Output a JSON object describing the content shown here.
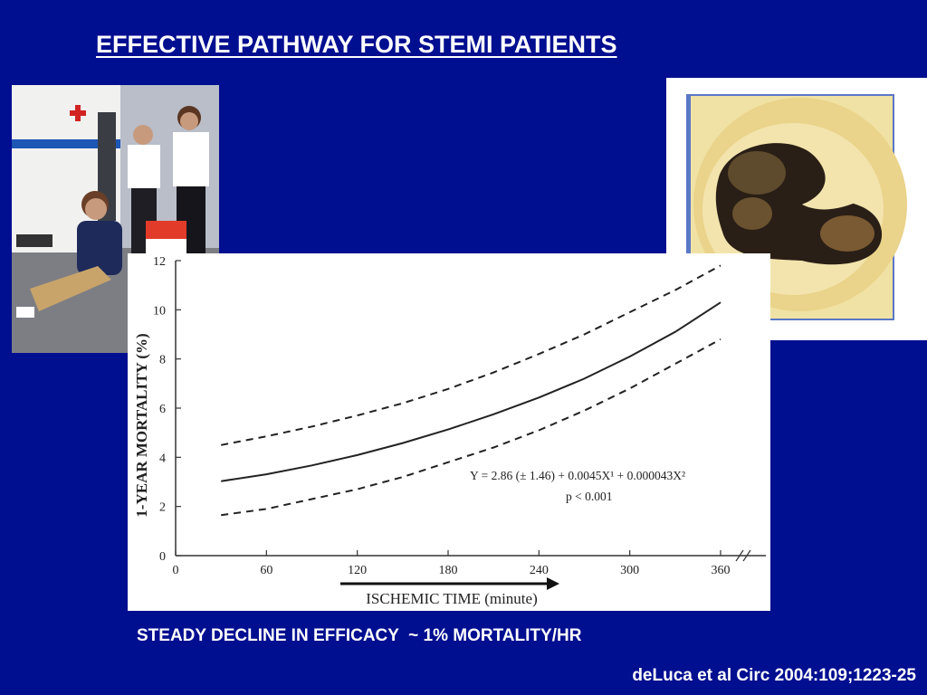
{
  "slide": {
    "title": "EFFECTIVE PATHWAY FOR STEMI PATIENTS",
    "caption": "STEADY DECLINE IN EFFICACY  ~ 1% MORTALITY/HR",
    "citation": "deLuca et al Circ 2004:109;1223-25",
    "background_color": "#000e90"
  },
  "chart_data": {
    "type": "line",
    "xlabel": "ISCHEMIC TIME (minute)",
    "ylabel": "1-YEAR MORTALITY (%)",
    "xlim": [
      0,
      360
    ],
    "ylim": [
      0,
      12
    ],
    "xticks": [
      0,
      60,
      120,
      180,
      240,
      300,
      360
    ],
    "yticks": [
      0,
      2,
      4,
      6,
      8,
      10,
      12
    ],
    "grid": false,
    "series": [
      {
        "style": "solid",
        "x": [
          30,
          60,
          90,
          120,
          150,
          180,
          210,
          240,
          270,
          300,
          330,
          360
        ],
        "y": [
          3.03,
          3.31,
          3.67,
          4.09,
          4.58,
          5.13,
          5.75,
          6.43,
          7.2,
          8.1,
          9.1,
          10.3
        ]
      },
      {
        "style": "dashed",
        "x": [
          30,
          60,
          90,
          120,
          150,
          180,
          210,
          240,
          270,
          300,
          330,
          360
        ],
        "y": [
          4.5,
          4.85,
          5.25,
          5.7,
          6.2,
          6.78,
          7.45,
          8.2,
          9.0,
          9.9,
          10.8,
          11.8
        ]
      },
      {
        "style": "dashed",
        "x": [
          30,
          60,
          90,
          120,
          150,
          180,
          210,
          240,
          270,
          300,
          330,
          360
        ],
        "y": [
          1.65,
          1.9,
          2.3,
          2.7,
          3.2,
          3.8,
          4.4,
          5.1,
          5.9,
          6.8,
          7.8,
          8.8
        ]
      }
    ],
    "annotations": {
      "equation": "Y = 2.86 (± 1.46) + 0.0045X¹ + 0.000043X²",
      "pvalue": "p < 0.001"
    }
  }
}
